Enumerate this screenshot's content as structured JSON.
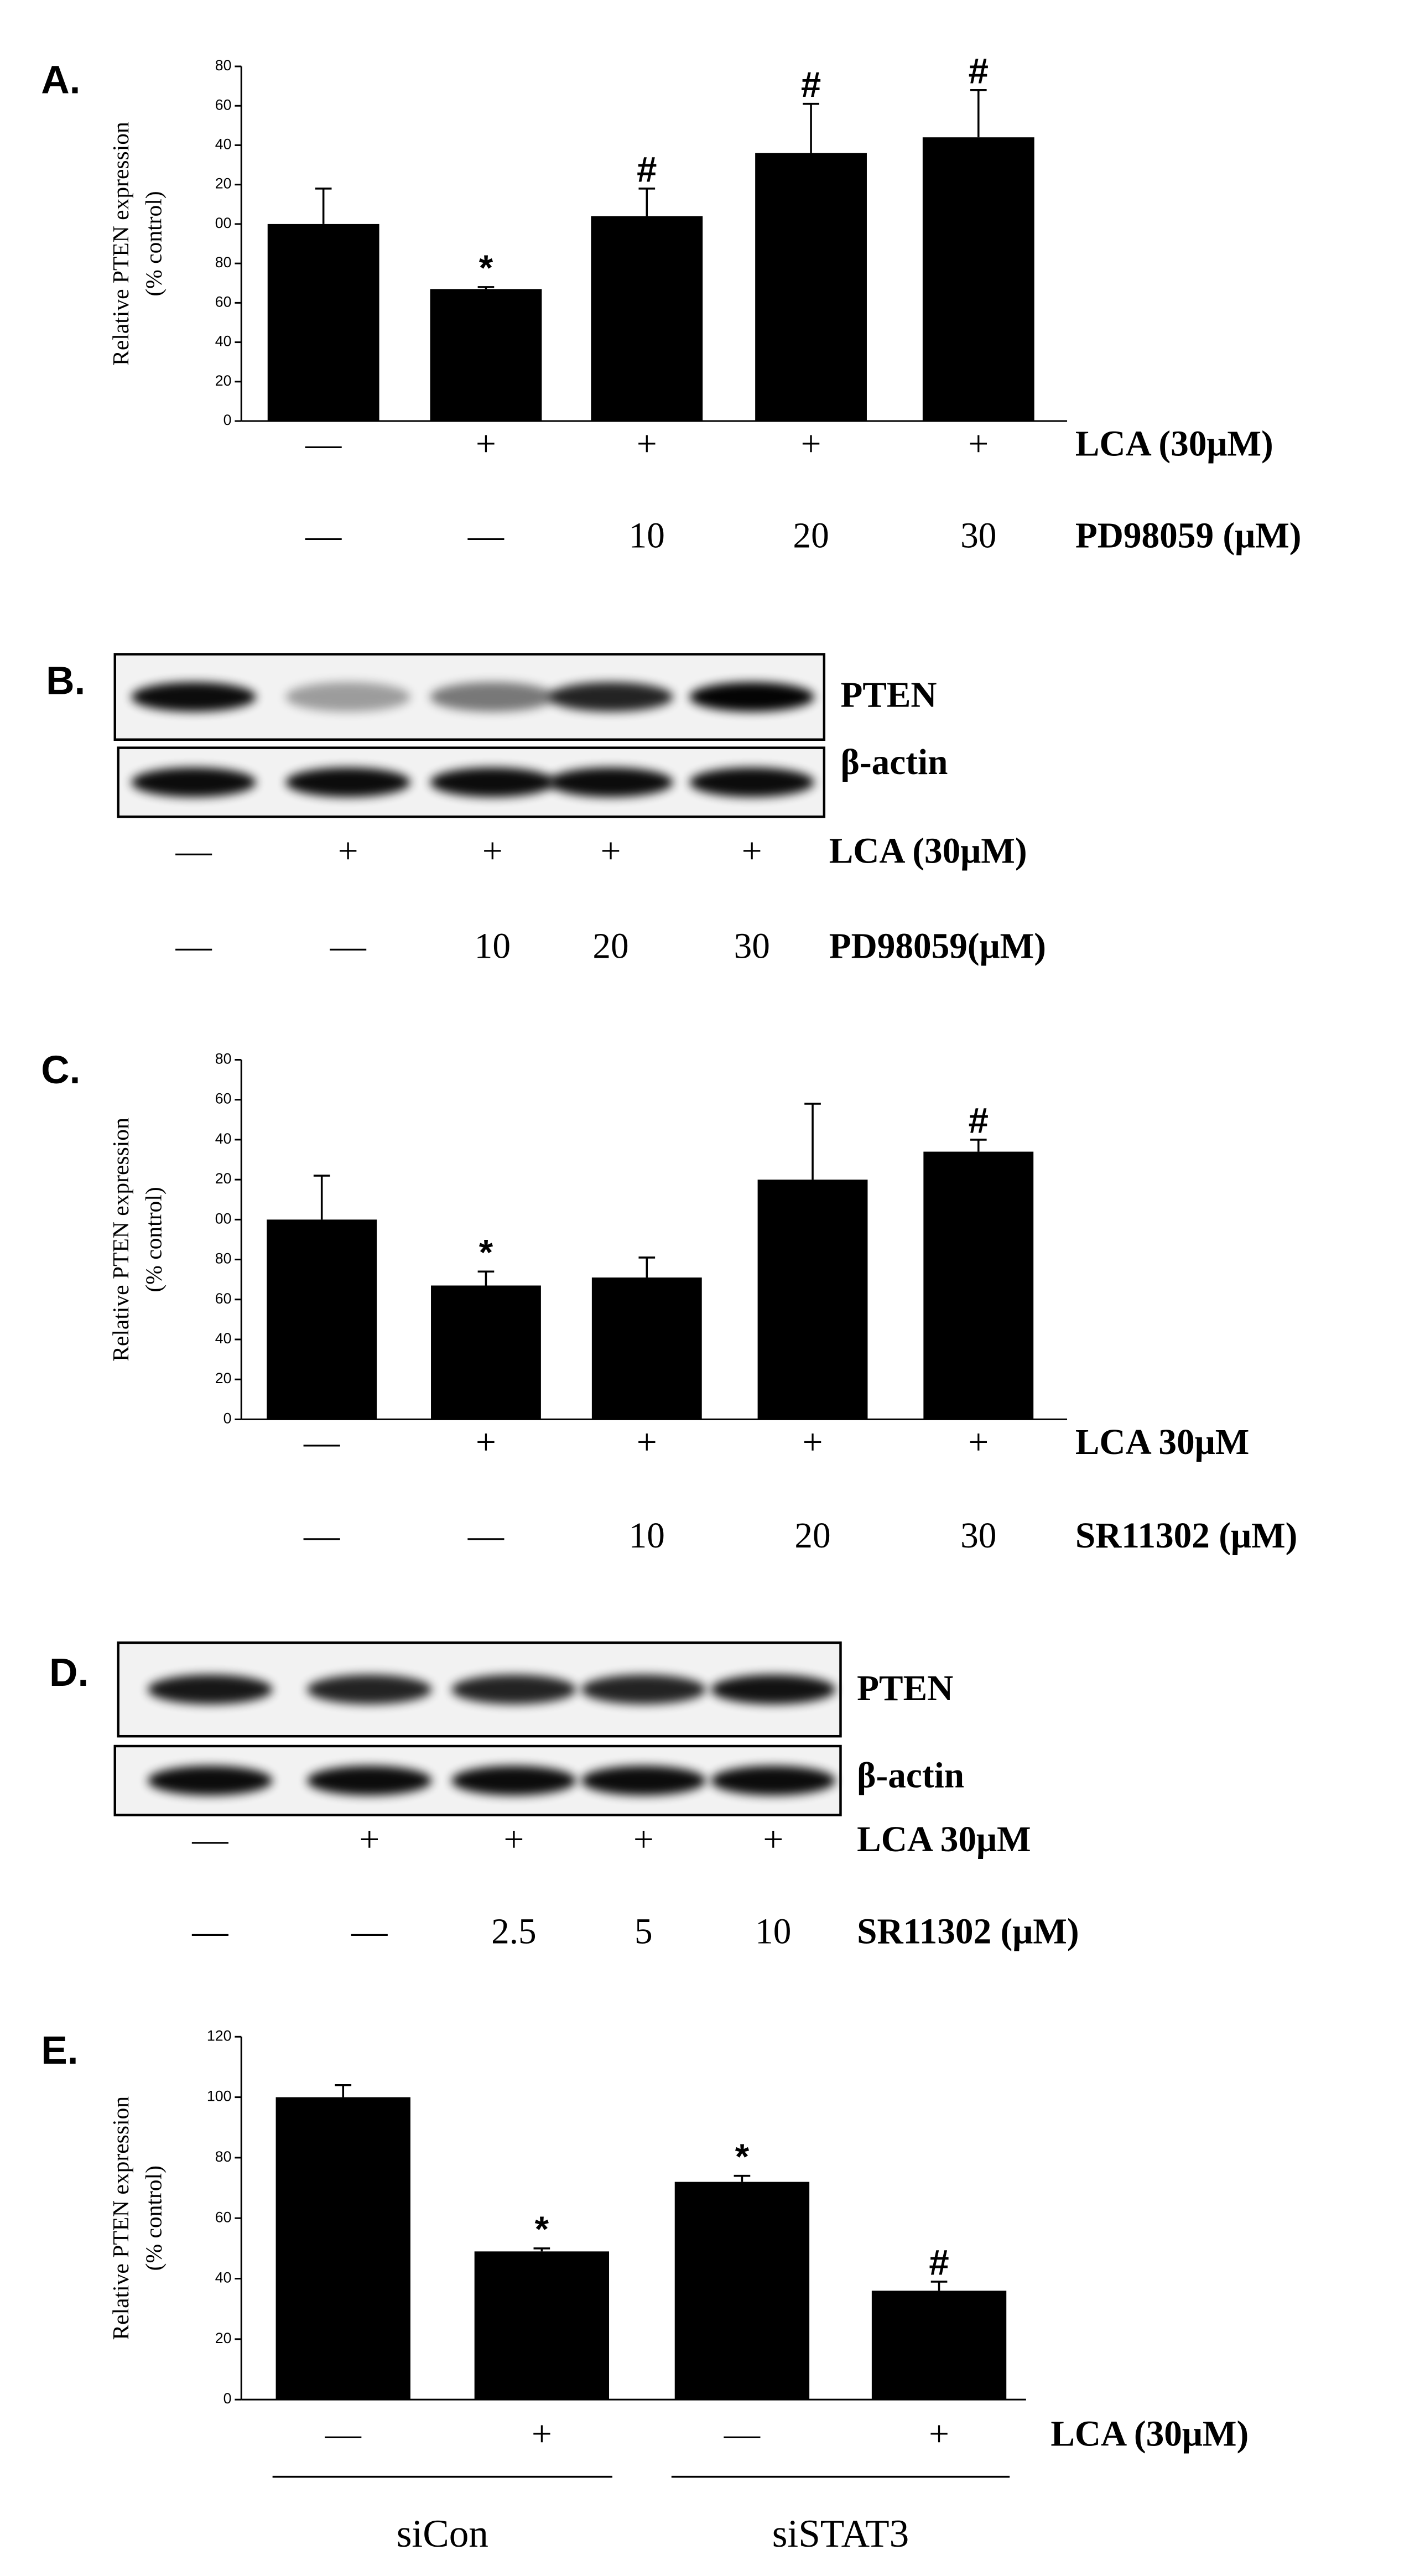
{
  "chart_data": [
    {
      "type": "bar",
      "panel": "A.",
      "ylabel": [
        "Relative PTEN expression",
        "(% control)"
      ],
      "color": "#000000",
      "values": [
        100,
        67,
        104,
        136,
        144
      ],
      "errors": [
        18,
        1,
        14,
        25,
        24
      ],
      "annotations": [
        null,
        "*",
        "#",
        "#",
        "#"
      ],
      "ylim": [
        0,
        180
      ],
      "yticks": [
        0,
        20,
        40,
        60,
        80,
        {
          "value": 100,
          "label": "00"
        },
        {
          "value": 120,
          "label": "20"
        },
        {
          "value": 140,
          "label": "40"
        },
        {
          "value": 160,
          "label": "60"
        },
        {
          "value": 180,
          "label": "80"
        }
      ],
      "conditions": [
        {
          "name": "LCA (30μM)",
          "values": [
            "—",
            "+",
            "+",
            "+",
            "+"
          ]
        },
        {
          "name": "PD98059 (μM)",
          "values": [
            "—",
            "—",
            "10",
            "20",
            "30"
          ]
        }
      ]
    },
    {
      "type": "bar",
      "panel": "C.",
      "ylabel": [
        "Relative PTEN expression",
        "(% control)"
      ],
      "color": "#000000",
      "values": [
        100,
        67,
        71,
        120,
        134
      ],
      "errors": [
        22,
        7,
        10,
        38,
        6
      ],
      "annotations": [
        null,
        "*",
        null,
        null,
        "#"
      ],
      "ylim": [
        0,
        180
      ],
      "yticks": [
        0,
        20,
        40,
        60,
        80,
        {
          "value": 100,
          "label": "00"
        },
        {
          "value": 120,
          "label": "20"
        },
        {
          "value": 140,
          "label": "40"
        },
        {
          "value": 160,
          "label": "60"
        },
        {
          "value": 180,
          "label": "80"
        }
      ],
      "conditions": [
        {
          "name": "LCA 30μM",
          "values": [
            "—",
            "+",
            "+",
            "+",
            "+"
          ]
        },
        {
          "name": "SR11302 (μM)",
          "values": [
            "—",
            "—",
            "10",
            "20",
            "30"
          ]
        }
      ]
    },
    {
      "type": "bar",
      "panel": "E.",
      "ylabel": [
        "Relative PTEN expression",
        "(% control)"
      ],
      "color": "#000000",
      "values": [
        100,
        49,
        72,
        36
      ],
      "errors": [
        4,
        1,
        2,
        3
      ],
      "annotations": [
        null,
        "*",
        "*",
        "#"
      ],
      "ylim": [
        0,
        120
      ],
      "yticks": [
        0,
        20,
        40,
        60,
        80,
        100,
        120
      ],
      "conditions": [
        {
          "name": "LCA (30μM)",
          "values": [
            "—",
            "+",
            "—",
            "+"
          ]
        }
      ],
      "groups": [
        "siCon",
        "siSTAT3"
      ]
    }
  ],
  "blots": [
    {
      "panel": "B.",
      "rows": [
        "PTEN",
        "β-actin"
      ],
      "conditions": [
        {
          "name": "LCA (30μM)",
          "values": [
            "—",
            "+",
            "+",
            "+",
            "+"
          ]
        },
        {
          "name": "PD98059(μM)",
          "values": [
            "—",
            "—",
            "10",
            "20",
            "30"
          ]
        }
      ]
    },
    {
      "panel": "D.",
      "rows": [
        "PTEN",
        "β-actin"
      ],
      "conditions": [
        {
          "name": "LCA 30μM",
          "values": [
            "—",
            "+",
            "+",
            "+",
            "+"
          ]
        },
        {
          "name": "SR11302 (μM)",
          "values": [
            "—",
            "—",
            "2.5",
            "5",
            "10"
          ]
        }
      ]
    }
  ]
}
